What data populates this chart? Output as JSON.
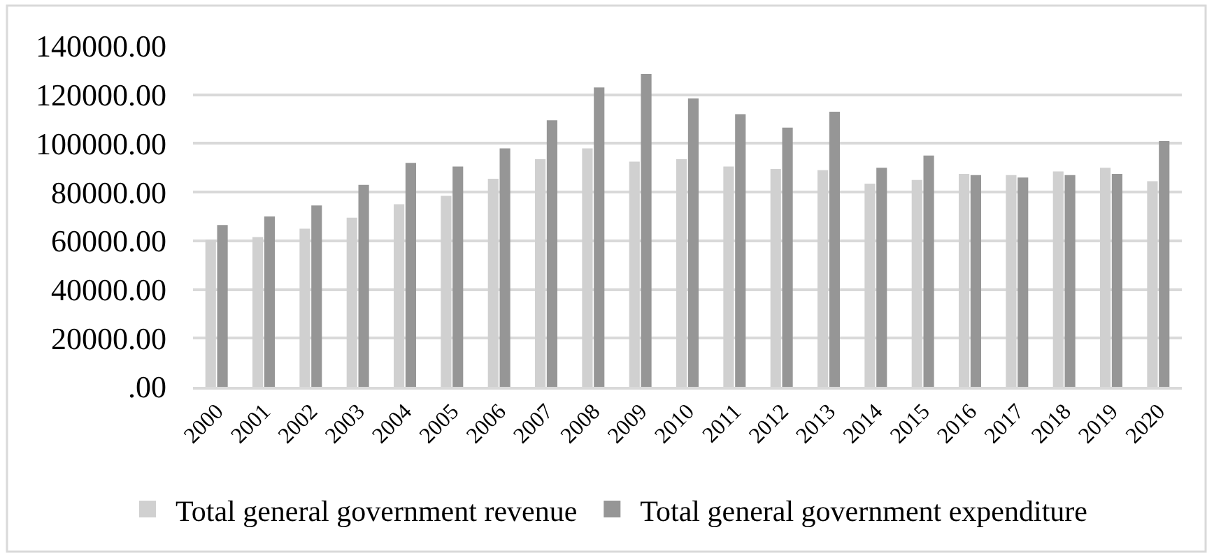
{
  "chart_data": {
    "type": "bar",
    "categories": [
      "2000",
      "2001",
      "2002",
      "2003",
      "2004",
      "2005",
      "2006",
      "2007",
      "2008",
      "2009",
      "2010",
      "2011",
      "2012",
      "2013",
      "2014",
      "2015",
      "2016",
      "2017",
      "2018",
      "2019",
      "2020"
    ],
    "series": [
      {
        "name": "Total general government revenue",
        "color": "#d0d0d0",
        "values": [
          60500,
          61500,
          65000,
          69500,
          75000,
          78500,
          85500,
          93500,
          98000,
          92500,
          93500,
          90500,
          89500,
          89000,
          83500,
          85000,
          87500,
          87000,
          88500,
          90000,
          84500
        ]
      },
      {
        "name": "Total general government expenditure",
        "color": "#969696",
        "values": [
          66500,
          70000,
          74500,
          83000,
          92000,
          90500,
          98000,
          109500,
          123000,
          128500,
          118500,
          112000,
          106500,
          113000,
          90000,
          95000,
          87000,
          86000,
          87000,
          87500,
          101000
        ]
      }
    ],
    "ylim": [
      0,
      140000
    ],
    "yticks": [
      {
        "value": 0,
        "label": ".00"
      },
      {
        "value": 20000,
        "label": "20000.00"
      },
      {
        "value": 40000,
        "label": "40000.00"
      },
      {
        "value": 60000,
        "label": "60000.00"
      },
      {
        "value": 80000,
        "label": "80000.00"
      },
      {
        "value": 100000,
        "label": "100000.00"
      },
      {
        "value": 120000,
        "label": "120000.00"
      },
      {
        "value": 140000,
        "label": "140000.00"
      }
    ],
    "grid": "y",
    "legend": "bottom"
  }
}
